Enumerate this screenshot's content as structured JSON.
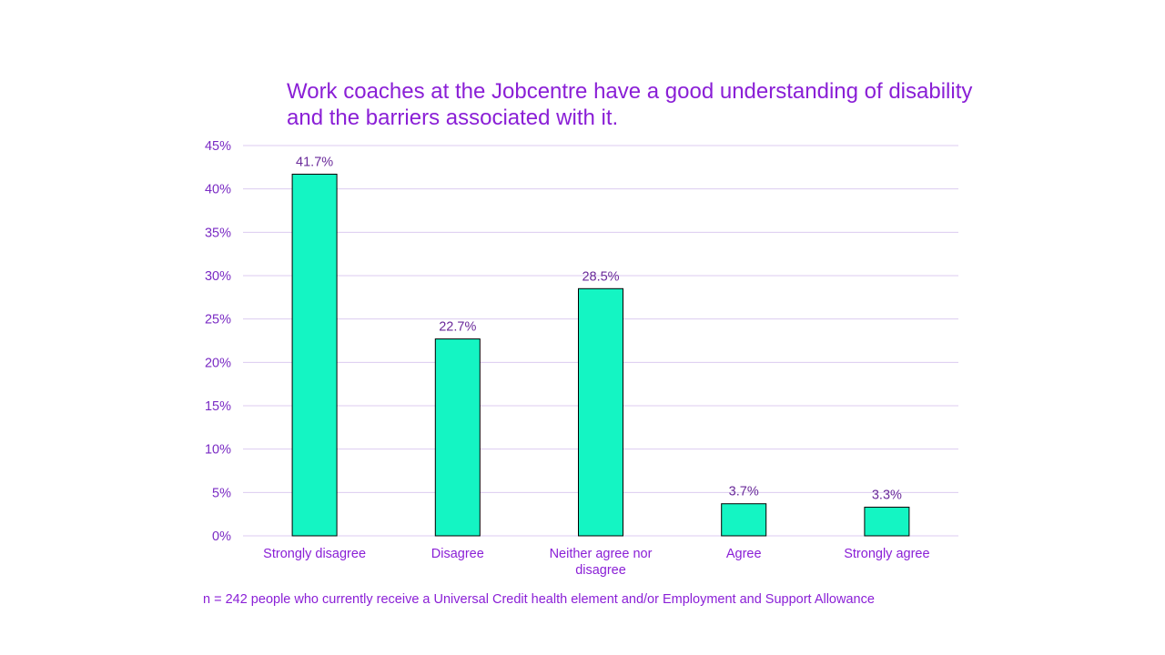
{
  "chart_data": {
    "type": "bar",
    "title": "Work coaches at the Jobcentre have a good understanding of disability and the barriers associated with it.",
    "categories": [
      "Strongly disagree",
      "Disagree",
      "Neither agree nor disagree",
      "Agree",
      "Strongly agree"
    ],
    "values": [
      41.7,
      22.7,
      28.5,
      3.7,
      3.3
    ],
    "data_labels": [
      "41.7%",
      "22.7%",
      "28.5%",
      "3.7%",
      "3.3%"
    ],
    "ylim": [
      0,
      45
    ],
    "yticks": [
      "0%",
      "5%",
      "10%",
      "15%",
      "20%",
      "25%",
      "30%",
      "35%",
      "40%",
      "45%"
    ],
    "xlabel": "",
    "ylabel": "",
    "grid": true,
    "legend": "none",
    "note": "n = 242 people who currently receive a Universal Credit health element and/or Employment and Support Allowance",
    "colors": {
      "bar": "#14F5C3",
      "bar_edge": "#000000",
      "text": "#8A1FD6",
      "grid": "#DCCBF0"
    }
  }
}
